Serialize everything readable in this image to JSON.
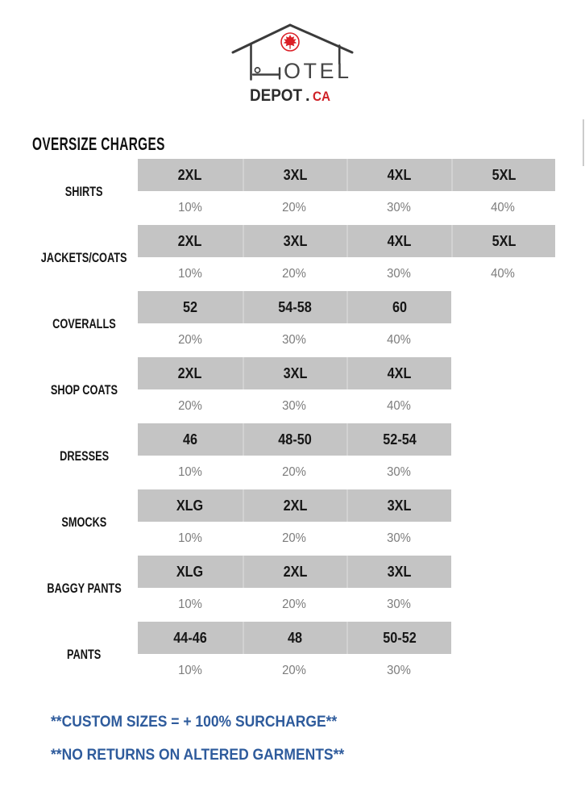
{
  "logo": {
    "hotel_text": "OTEL",
    "depot_text": "DEPOT",
    "dot": ".",
    "tld_text": "CA"
  },
  "heading": "OVERSIZE CHARGES",
  "table": {
    "rows": [
      {
        "label": "SHIRTS",
        "sizes": [
          "2XL",
          "3XL",
          "4XL",
          "5XL"
        ],
        "charges": [
          "10%",
          "20%",
          "30%",
          "40%"
        ]
      },
      {
        "label": "JACKETS/COATS",
        "sizes": [
          "2XL",
          "3XL",
          "4XL",
          "5XL"
        ],
        "charges": [
          "10%",
          "20%",
          "30%",
          "40%"
        ]
      },
      {
        "label": "COVERALLS",
        "sizes": [
          "52",
          "54-58",
          "60"
        ],
        "charges": [
          "20%",
          "30%",
          "40%"
        ]
      },
      {
        "label": "SHOP COATS",
        "sizes": [
          "2XL",
          "3XL",
          "4XL"
        ],
        "charges": [
          "20%",
          "30%",
          "40%"
        ]
      },
      {
        "label": "DRESSES",
        "sizes": [
          "46",
          "48-50",
          "52-54"
        ],
        "charges": [
          "10%",
          "20%",
          "30%"
        ]
      },
      {
        "label": "SMOCKS",
        "sizes": [
          "XLG",
          "2XL",
          "3XL"
        ],
        "charges": [
          "10%",
          "20%",
          "30%"
        ]
      },
      {
        "label": "BAGGY PANTS",
        "sizes": [
          "XLG",
          "2XL",
          "3XL"
        ],
        "charges": [
          "10%",
          "20%",
          "30%"
        ]
      },
      {
        "label": "PANTS",
        "sizes": [
          "44-46",
          "48",
          "50-52"
        ],
        "charges": [
          "10%",
          "20%",
          "30%"
        ]
      }
    ]
  },
  "footnotes": [
    "**CUSTOM SIZES = + 100% SURCHARGE**",
    "**NO RETURNS ON ALTERED GARMENTS**"
  ],
  "colors": {
    "bar_gray": "#c4c4c4",
    "charge_text_gray": "#7c7c7c",
    "footnote_blue": "#2e5b9c",
    "logo_red": "#db1f26",
    "logo_dark": "#3f3f3f"
  }
}
